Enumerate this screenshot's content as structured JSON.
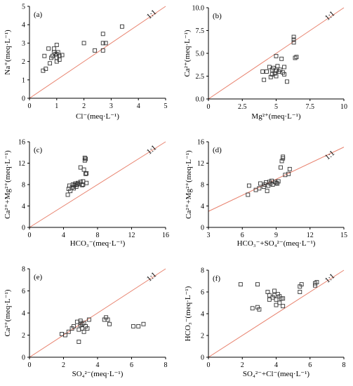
{
  "chart_data": [
    {
      "type": "scatter",
      "panel_label": "(a)",
      "xlabel": "Cl⁻(meq·L⁻¹)",
      "ylabel": "Na⁺(meq·L⁻¹)",
      "xlim": [
        0,
        5
      ],
      "ylim": [
        0,
        5
      ],
      "xticks": [
        "0",
        "1",
        "2",
        "3",
        "4",
        "5"
      ],
      "yticks": [
        "0",
        "1",
        "2",
        "3",
        "4",
        "5"
      ],
      "reference_line": "1:1",
      "points": [
        [
          0.5,
          1.5
        ],
        [
          0.6,
          1.6
        ],
        [
          0.55,
          2.3
        ],
        [
          0.7,
          2.7
        ],
        [
          0.8,
          2.2
        ],
        [
          0.75,
          1.9
        ],
        [
          0.85,
          2.3
        ],
        [
          0.9,
          2.5
        ],
        [
          0.95,
          2.4
        ],
        [
          0.9,
          2.7
        ],
        [
          1.0,
          2.2
        ],
        [
          1.0,
          2.4
        ],
        [
          1.0,
          2.9
        ],
        [
          1.05,
          2.5
        ],
        [
          1.1,
          2.1
        ],
        [
          1.1,
          2.3
        ],
        [
          1.0,
          2.0
        ],
        [
          1.2,
          2.35
        ],
        [
          2.0,
          3.0
        ],
        [
          2.4,
          2.6
        ],
        [
          2.7,
          2.6
        ],
        [
          2.7,
          3.0
        ],
        [
          2.8,
          3.0
        ],
        [
          2.7,
          3.5
        ],
        [
          3.4,
          3.9
        ]
      ]
    },
    {
      "type": "scatter",
      "panel_label": "(b)",
      "xlabel": "Mg²⁺(meq·L⁻¹)",
      "ylabel": "Ca²⁺(meq·L⁻¹)",
      "xlim": [
        0,
        10
      ],
      "ylim": [
        0,
        10
      ],
      "xticks": [
        "0",
        "2.5",
        "5",
        "7.5",
        "10"
      ],
      "yticks": [
        "0.0",
        "2.5",
        "5.0",
        "7.5",
        "10.0"
      ],
      "reference_line": "1:1",
      "points": [
        [
          4.0,
          3.0
        ],
        [
          4.1,
          2.1
        ],
        [
          4.3,
          3.0
        ],
        [
          4.5,
          3.5
        ],
        [
          4.6,
          2.4
        ],
        [
          4.7,
          2.7
        ],
        [
          4.7,
          3.2
        ],
        [
          4.8,
          3.4
        ],
        [
          4.9,
          2.8
        ],
        [
          5.0,
          3.1
        ],
        [
          5.0,
          2.5
        ],
        [
          5.1,
          3.6
        ],
        [
          5.2,
          3.0
        ],
        [
          5.3,
          3.2
        ],
        [
          5.0,
          4.7
        ],
        [
          5.4,
          4.4
        ],
        [
          5.5,
          2.9
        ],
        [
          5.6,
          3.5
        ],
        [
          5.6,
          2.7
        ],
        [
          5.8,
          1.9
        ],
        [
          6.3,
          6.2
        ],
        [
          6.3,
          6.5
        ],
        [
          6.3,
          6.8
        ],
        [
          6.4,
          4.5
        ],
        [
          6.5,
          4.6
        ]
      ]
    },
    {
      "type": "scatter",
      "panel_label": "(c)",
      "xlabel": "HCO₃⁻(meq·L⁻¹)",
      "ylabel": "Ca²⁺+Mg²⁺(meq·L⁻¹)",
      "xlim": [
        0,
        16
      ],
      "ylim": [
        0,
        16
      ],
      "xticks": [
        "0",
        "4",
        "8",
        "12",
        "16"
      ],
      "yticks": [
        "0",
        "4",
        "8",
        "12",
        "16"
      ],
      "reference_line": "1:1",
      "points": [
        [
          4.5,
          6.1
        ],
        [
          4.6,
          7.2
        ],
        [
          4.7,
          7.8
        ],
        [
          4.8,
          6.8
        ],
        [
          5.0,
          7.5
        ],
        [
          5.1,
          8.0
        ],
        [
          5.2,
          7.3
        ],
        [
          5.3,
          7.9
        ],
        [
          5.4,
          8.2
        ],
        [
          5.5,
          7.6
        ],
        [
          5.6,
          8.0
        ],
        [
          5.7,
          8.3
        ],
        [
          5.9,
          8.1
        ],
        [
          6.0,
          8.5
        ],
        [
          6.0,
          11.2
        ],
        [
          6.2,
          7.9
        ],
        [
          6.3,
          8.6
        ],
        [
          6.4,
          10.8
        ],
        [
          6.5,
          12.5
        ],
        [
          6.5,
          13.0
        ],
        [
          6.6,
          12.8
        ],
        [
          6.6,
          10.0
        ],
        [
          6.7,
          10.1
        ],
        [
          6.7,
          8.3
        ],
        [
          6.3,
          8.0
        ]
      ]
    },
    {
      "type": "scatter",
      "panel_label": "(d)",
      "xlabel": "HCO₃⁻+SO₄²⁻(meq·L⁻¹)",
      "ylabel": "Ca²⁺+Mg²⁺(meq·L⁻¹)",
      "xlim": [
        3,
        15
      ],
      "ylim": [
        0,
        16
      ],
      "xticks": [
        "3",
        "6",
        "9",
        "12",
        "15"
      ],
      "yticks": [
        "0",
        "4",
        "8",
        "12",
        "16"
      ],
      "reference_line": "1:1",
      "points": [
        [
          6.5,
          6.1
        ],
        [
          6.6,
          7.8
        ],
        [
          7.2,
          7.0
        ],
        [
          7.5,
          7.3
        ],
        [
          7.6,
          8.2
        ],
        [
          7.9,
          7.6
        ],
        [
          8.0,
          8.0
        ],
        [
          8.1,
          8.4
        ],
        [
          8.2,
          6.8
        ],
        [
          8.3,
          7.8
        ],
        [
          8.4,
          8.5
        ],
        [
          8.5,
          8.2
        ],
        [
          8.6,
          8.7
        ],
        [
          8.7,
          8.0
        ],
        [
          8.9,
          8.5
        ],
        [
          9.0,
          8.3
        ],
        [
          9.1,
          8.2
        ],
        [
          9.2,
          8.6
        ],
        [
          9.4,
          11.2
        ],
        [
          9.5,
          12.4
        ],
        [
          9.6,
          12.9
        ],
        [
          9.6,
          13.2
        ],
        [
          9.8,
          9.8
        ],
        [
          10.1,
          10.0
        ],
        [
          10.2,
          10.9
        ]
      ]
    },
    {
      "type": "scatter",
      "panel_label": "(e)",
      "xlabel": "SO₄²⁻(meq·L⁻¹)",
      "ylabel": "Ca²⁺(meq·L⁻¹)",
      "xlim": [
        0,
        8
      ],
      "ylim": [
        0,
        8
      ],
      "xticks": [
        "0",
        "2",
        "4",
        "6",
        "8"
      ],
      "yticks": [
        "0",
        "2",
        "4",
        "6",
        "8"
      ],
      "reference_line": "1:1",
      "points": [
        [
          1.9,
          2.1
        ],
        [
          2.1,
          2.0
        ],
        [
          2.3,
          2.3
        ],
        [
          2.5,
          2.6
        ],
        [
          2.6,
          2.8
        ],
        [
          2.8,
          3.2
        ],
        [
          2.9,
          2.5
        ],
        [
          2.9,
          1.4
        ],
        [
          3.0,
          3.3
        ],
        [
          3.0,
          2.9
        ],
        [
          3.1,
          3.0
        ],
        [
          3.1,
          2.6
        ],
        [
          3.2,
          3.1
        ],
        [
          3.2,
          2.3
        ],
        [
          3.3,
          2.8
        ],
        [
          3.4,
          2.6
        ],
        [
          3.5,
          3.4
        ],
        [
          4.4,
          3.4
        ],
        [
          4.5,
          3.6
        ],
        [
          4.6,
          3.4
        ],
        [
          4.7,
          3.0
        ],
        [
          6.1,
          2.8
        ],
        [
          6.4,
          2.8
        ],
        [
          6.7,
          3.0
        ],
        [
          3.0,
          3.1
        ]
      ]
    },
    {
      "type": "scatter",
      "panel_label": "(f)",
      "xlabel": "SO₄²⁻+Cl⁻(meq·L⁻¹)",
      "ylabel": "HCO₃⁻(meq·L⁻¹)",
      "xlim": [
        0,
        8
      ],
      "ylim": [
        0,
        8
      ],
      "xticks": [
        "0",
        "2",
        "4",
        "6",
        "8"
      ],
      "yticks": [
        "0",
        "2",
        "4",
        "6",
        "8"
      ],
      "reference_line": "1:1",
      "points": [
        [
          1.9,
          6.7
        ],
        [
          2.6,
          4.5
        ],
        [
          2.9,
          4.6
        ],
        [
          2.9,
          6.7
        ],
        [
          3.0,
          4.4
        ],
        [
          3.5,
          6.0
        ],
        [
          3.6,
          5.7
        ],
        [
          3.6,
          5.3
        ],
        [
          3.8,
          5.5
        ],
        [
          3.9,
          6.1
        ],
        [
          3.9,
          5.7
        ],
        [
          4.0,
          4.8
        ],
        [
          4.0,
          5.3
        ],
        [
          4.1,
          5.8
        ],
        [
          4.2,
          5.0
        ],
        [
          4.2,
          5.6
        ],
        [
          4.3,
          5.4
        ],
        [
          4.4,
          4.7
        ],
        [
          5.4,
          6.0
        ],
        [
          5.4,
          6.5
        ],
        [
          5.5,
          6.7
        ],
        [
          6.3,
          6.6
        ],
        [
          6.3,
          6.8
        ],
        [
          6.4,
          6.9
        ],
        [
          4.4,
          5.4
        ]
      ]
    }
  ],
  "colors": {
    "reference_line": "#e8826e",
    "marker": "#333333",
    "axis": "#000000"
  }
}
